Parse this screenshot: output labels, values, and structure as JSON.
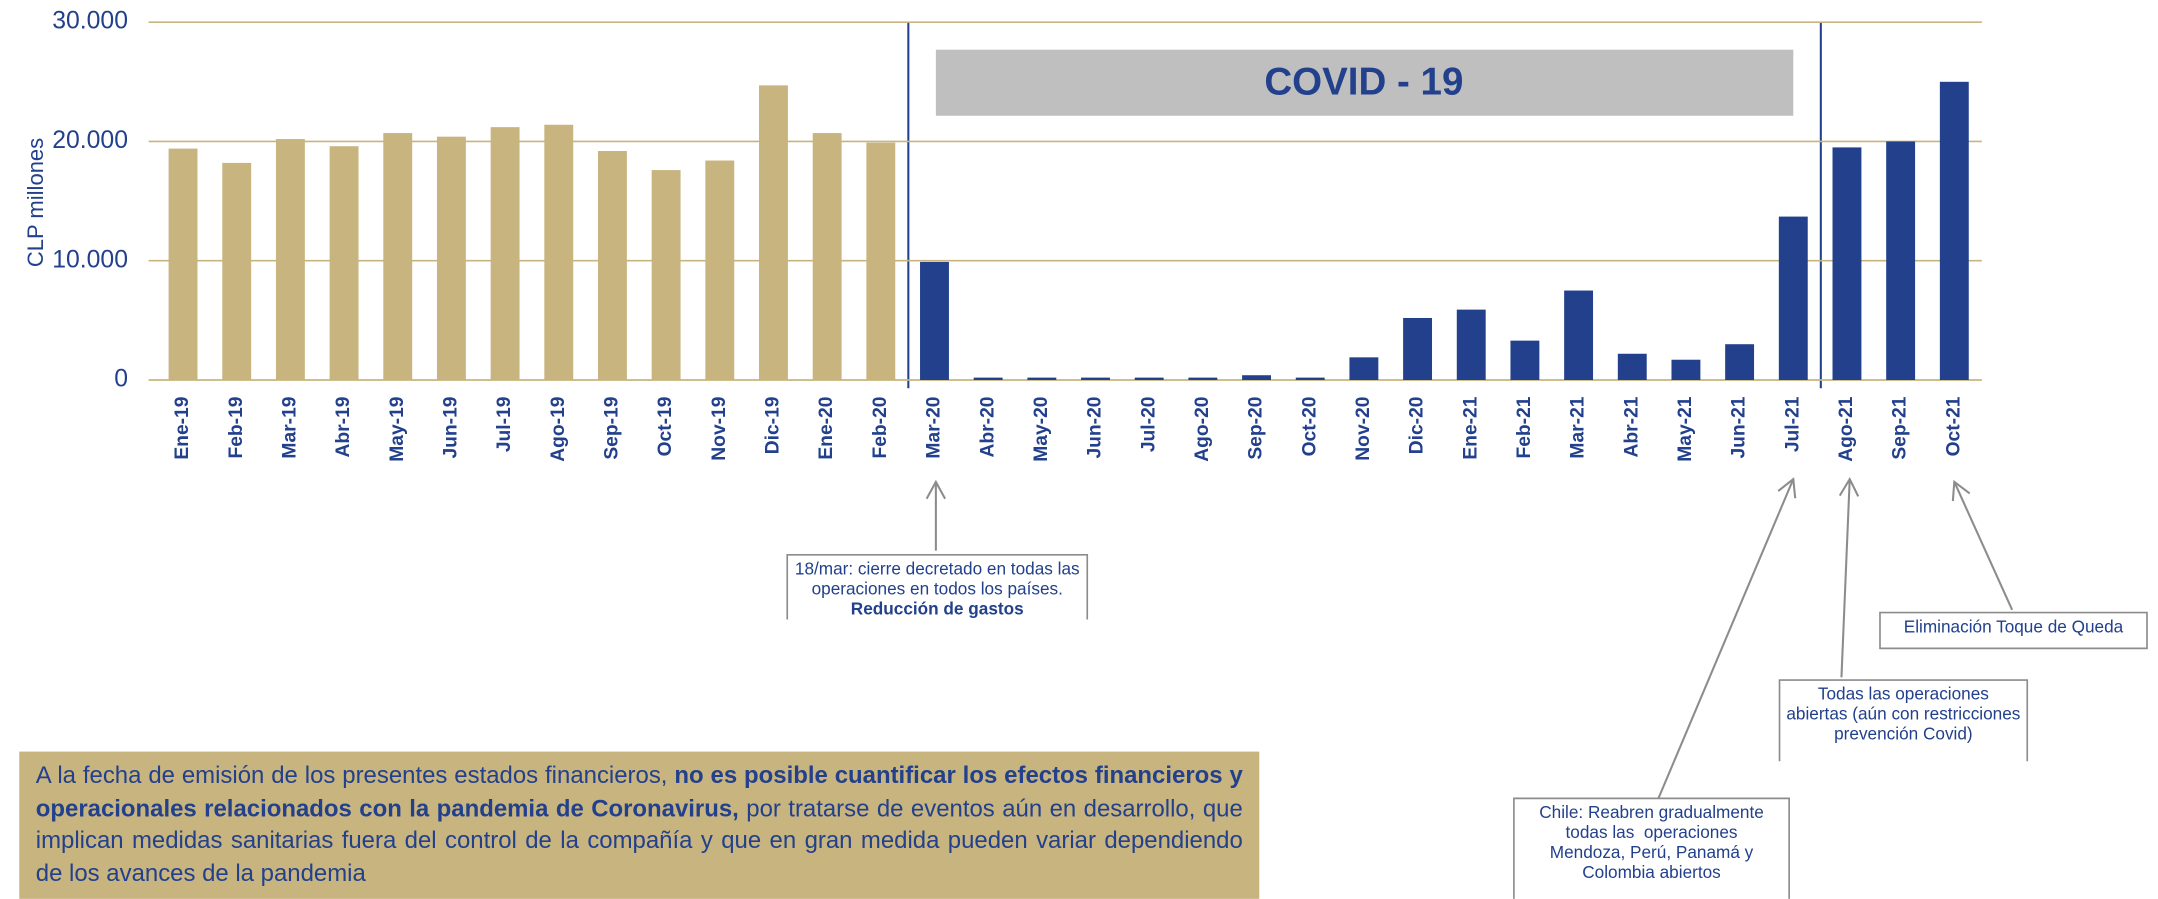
{
  "chart_data": {
    "type": "bar",
    "y_axis_label": "CLP millones",
    "categories": [
      "Ene-19",
      "Feb-19",
      "Mar-19",
      "Abr-19",
      "May-19",
      "Jun-19",
      "Jul-19",
      "Ago-19",
      "Sep-19",
      "Oct-19",
      "Nov-19",
      "Dic-19",
      "Ene-20",
      "Feb-20",
      "Mar-20",
      "Abr-20",
      "May-20",
      "Jun-20",
      "Jul-20",
      "Ago-20",
      "Sep-20",
      "Oct-20",
      "Nov-20",
      "Dic-20",
      "Ene-21",
      "Feb-21",
      "Mar-21",
      "Abr-21",
      "May-21",
      "Jun-21",
      "Jul-21",
      "Ago-21",
      "Sep-21",
      "Oct-21"
    ],
    "values": [
      19400,
      18200,
      20200,
      19600,
      20700,
      20400,
      21200,
      21400,
      19200,
      17600,
      18400,
      24700,
      20700,
      19900,
      9900,
      200,
      200,
      200,
      200,
      200,
      400,
      200,
      1900,
      5200,
      5900,
      3300,
      7500,
      2200,
      1700,
      3000,
      13700,
      19500,
      20000,
      25000
    ],
    "colors": [
      "#c8b47e",
      "#c8b47e",
      "#c8b47e",
      "#c8b47e",
      "#c8b47e",
      "#c8b47e",
      "#c8b47e",
      "#c8b47e",
      "#c8b47e",
      "#c8b47e",
      "#c8b47e",
      "#c8b47e",
      "#c8b47e",
      "#c8b47e",
      "#22408c",
      "#22408c",
      "#22408c",
      "#22408c",
      "#22408c",
      "#22408c",
      "#22408c",
      "#22408c",
      "#22408c",
      "#22408c",
      "#22408c",
      "#22408c",
      "#22408c",
      "#22408c",
      "#22408c",
      "#22408c",
      "#22408c",
      "#22408c",
      "#22408c",
      "#22408c"
    ],
    "ylim": [
      0,
      30000
    ],
    "yticks": [
      {
        "value": 0,
        "label": "0"
      },
      {
        "value": 10000,
        "label": "10.000"
      },
      {
        "value": 20000,
        "label": "20.000"
      },
      {
        "value": 30000,
        "label": "30.000"
      }
    ],
    "grid": true,
    "banner": "COVID - 19",
    "annotations": [
      {
        "lines": [
          "18/mar: cierre decretado en todas las",
          "operaciones en todos los países.",
          "Reducción de gastos"
        ],
        "bold": [
          false,
          false,
          true
        ]
      },
      {
        "lines": [
          "Eliminación Toque de Queda"
        ],
        "bold": [
          false
        ]
      },
      {
        "lines": [
          "Todas las operaciones",
          "abiertas (aún con restricciones",
          "prevención Covid)"
        ],
        "bold": [
          false,
          false,
          false
        ]
      },
      {
        "lines": [
          "Chile: Reabren gradualmente",
          "todas las  operaciones",
          "Mendoza, Perú, Panamá y",
          "Colombia abiertos"
        ],
        "bold": [
          false,
          false,
          false,
          false
        ]
      }
    ]
  },
  "note": {
    "parts": [
      {
        "text": "A la fecha de emisión de los presentes estados financieros, ",
        "bold": false
      },
      {
        "text": "no es posible cuantificar los efectos financieros y operacionales relacionados con la pandemia de Coronavirus,",
        "bold": true
      },
      {
        "text": " por tratarse de eventos aún en desarrollo, que implican medidas sanitarias fuera del control de la compañía y que en gran medida pueden variar dependiendo de los avances de la pandemia",
        "bold": false
      }
    ]
  }
}
